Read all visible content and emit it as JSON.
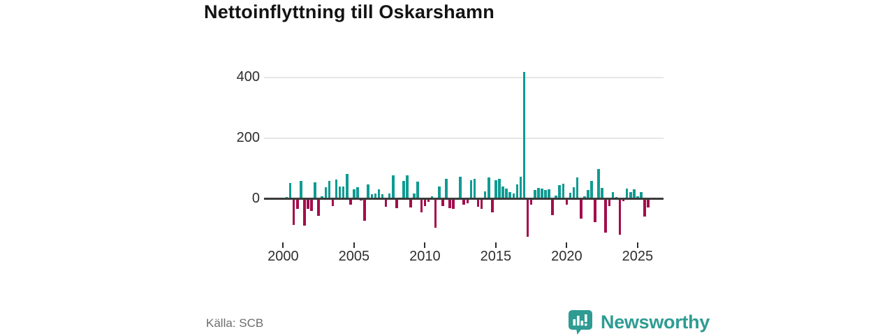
{
  "header": {
    "title": "Nettoinflyttning till Oskarshamn"
  },
  "footer": {
    "source": "Källa: SCB",
    "brand": "Newsworthy"
  },
  "colors": {
    "positive": "#0f9b92",
    "negative": "#a30d4c",
    "grid": "#e6e6e6",
    "axis": "#3b3b3b",
    "tick_text": "#2e2e2e",
    "title_text": "#131313",
    "source_text": "#6d6d6d",
    "brand_teal": "#2e9c93"
  },
  "chart_data": {
    "type": "bar",
    "title": "Nettoinflyttning till Oskarshamn",
    "xlabel": "",
    "ylabel": "",
    "frequency": "quarterly",
    "start_period": "2000Q1",
    "end_period": "2025Q3",
    "values": [
      5,
      52,
      -82,
      -30,
      58,
      -85,
      -30,
      -37,
      53,
      -52,
      8,
      37,
      58,
      -20,
      63,
      40,
      41,
      82,
      -17,
      31,
      38,
      -3,
      -70,
      46,
      15,
      17,
      32,
      14,
      -23,
      17,
      76,
      -28,
      2,
      59,
      77,
      -25,
      18,
      56,
      -41,
      -21,
      -8,
      8,
      -92,
      41,
      -21,
      65,
      -27,
      -29,
      2,
      73,
      -15,
      -11,
      61,
      65,
      -24,
      -29,
      24,
      70,
      -42,
      60,
      65,
      40,
      33,
      22,
      18,
      46,
      73,
      417,
      -121,
      -16,
      28,
      36,
      33,
      28,
      31,
      -50,
      11,
      45,
      50,
      -15,
      19,
      38,
      69,
      -61,
      8,
      28,
      59,
      -74,
      97,
      36,
      -108,
      -20,
      21,
      5,
      -115,
      -5,
      33,
      22,
      30,
      8,
      22,
      -55,
      -25
    ],
    "y_ticks": [
      0,
      200,
      400
    ],
    "x_ticks": [
      2000,
      2005,
      2010,
      2015,
      2020,
      2025
    ],
    "ylim": [
      -150,
      440
    ],
    "grid": "horizontal-only",
    "legend": "none",
    "positive_color": "#0f9b92",
    "negative_color": "#a30d4c",
    "notes": "teal bars = net in-migration surplus, dark red bars = deficit; peak bar 2016Q4 ≈ +417"
  }
}
